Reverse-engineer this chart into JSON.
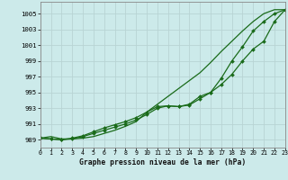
{
  "background_color": "#cceaea",
  "grid_color": "#b8d4d4",
  "line_color": "#1a6b1a",
  "title": "Graphe pression niveau de la mer (hPa)",
  "ylabel_ticks": [
    989,
    991,
    993,
    995,
    997,
    999,
    1001,
    1003,
    1005
  ],
  "xticks": [
    0,
    1,
    2,
    3,
    4,
    5,
    6,
    7,
    8,
    9,
    10,
    11,
    12,
    13,
    14,
    15,
    16,
    17,
    18,
    19,
    20,
    21,
    22,
    23
  ],
  "ylim": [
    988.0,
    1006.5
  ],
  "xlim": [
    0,
    23
  ],
  "line1_no_marker": [
    989.2,
    989.4,
    989.1,
    989.1,
    989.2,
    989.4,
    989.8,
    990.2,
    990.7,
    991.3,
    992.5,
    993.5,
    994.5,
    995.5,
    996.5,
    997.5,
    998.8,
    1000.2,
    1001.5,
    1002.8,
    1004.0,
    1005.0,
    1005.5,
    1005.5
  ],
  "line2": [
    989.2,
    989.1,
    989.0,
    989.1,
    989.4,
    989.8,
    990.2,
    990.6,
    991.0,
    991.5,
    992.2,
    993.0,
    993.3,
    993.2,
    993.4,
    994.2,
    995.0,
    996.0,
    997.3,
    999.0,
    1000.5,
    1001.5,
    1004.0,
    1005.5
  ],
  "line3": [
    989.2,
    989.1,
    989.0,
    989.2,
    989.5,
    990.0,
    990.5,
    990.9,
    991.3,
    991.8,
    992.5,
    993.2,
    993.3,
    993.2,
    993.5,
    994.5,
    995.0,
    996.8,
    999.0,
    1000.8,
    1002.8,
    1004.0,
    1005.0,
    1005.5
  ],
  "marker": "D",
  "marker_size": 2.0,
  "line_width": 0.9
}
